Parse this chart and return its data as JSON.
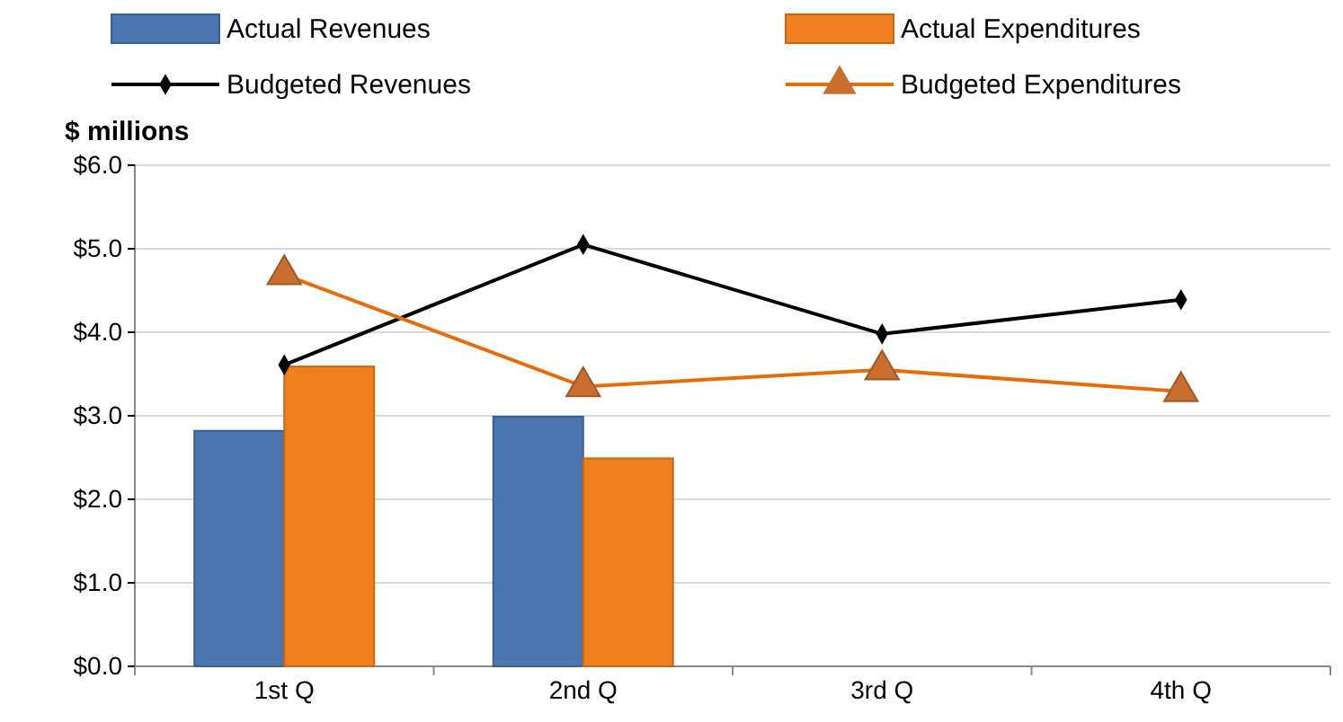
{
  "chart_data": {
    "type": "bar",
    "ylabel": "$ millions",
    "categories": [
      "1st Q",
      "2nd Q",
      "3rd Q",
      "4th Q"
    ],
    "series": [
      {
        "name": "Actual Revenues",
        "color": "#4a76b0",
        "values": [
          2.82,
          2.99,
          null,
          null
        ]
      },
      {
        "name": "Actual Expenditures",
        "color": "#f07f1e",
        "values": [
          3.59,
          2.49,
          null,
          null
        ]
      },
      {
        "name": "Budgeted Revenues",
        "type": "line",
        "color": "#000000",
        "marker": "diamond",
        "values": [
          3.61,
          5.05,
          3.98,
          4.39
        ]
      },
      {
        "name": "Budgeted Expenditures",
        "type": "line",
        "color": "#e46c0a",
        "marker": "triangle",
        "values": [
          4.69,
          3.35,
          3.55,
          3.29
        ]
      }
    ],
    "ylim": [
      0,
      6
    ],
    "yticks": [
      {
        "value": 0,
        "label": "$0.0"
      },
      {
        "value": 1,
        "label": "$1.0"
      },
      {
        "value": 2,
        "label": "$2.0"
      },
      {
        "value": 3,
        "label": "$3.0"
      },
      {
        "value": 4,
        "label": "$4.0"
      },
      {
        "value": 5,
        "label": "$5.0"
      },
      {
        "value": 6,
        "label": "$6.0"
      }
    ],
    "grid": "y",
    "legend": "top"
  }
}
